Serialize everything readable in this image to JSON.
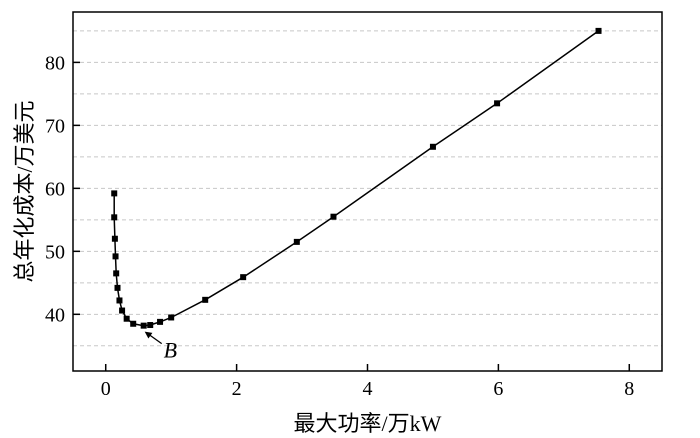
{
  "chart_data": {
    "type": "scatter",
    "title": "",
    "xlabel": "最大功率/万kW",
    "ylabel": "总年化成本/万美元",
    "xlim": [
      -0.5,
      8.5
    ],
    "ylim": [
      31,
      88
    ],
    "xticks": [
      0,
      2,
      4,
      6,
      8
    ],
    "yticks": [
      40,
      50,
      60,
      70,
      80
    ],
    "x_tick_labels": [
      "0",
      "2",
      "4",
      "6",
      "8"
    ],
    "y_tick_labels": [
      "40",
      "50",
      "60",
      "70",
      "80"
    ],
    "grid": "horizontal dashed",
    "legend": "none",
    "series": [
      {
        "color": "#000000",
        "marker": "square",
        "line": "solid",
        "points": [
          {
            "x": 0.13,
            "y": 59.2
          },
          {
            "x": 0.13,
            "y": 55.4
          },
          {
            "x": 0.14,
            "y": 52.0
          },
          {
            "x": 0.15,
            "y": 49.2
          },
          {
            "x": 0.16,
            "y": 46.5
          },
          {
            "x": 0.18,
            "y": 44.2
          },
          {
            "x": 0.21,
            "y": 42.2
          },
          {
            "x": 0.25,
            "y": 40.6
          },
          {
            "x": 0.32,
            "y": 39.3
          },
          {
            "x": 0.42,
            "y": 38.5
          },
          {
            "x": 0.58,
            "y": 38.2
          },
          {
            "x": 0.68,
            "y": 38.3
          },
          {
            "x": 0.83,
            "y": 38.8
          },
          {
            "x": 1.0,
            "y": 39.5
          },
          {
            "x": 1.52,
            "y": 42.3
          },
          {
            "x": 2.1,
            "y": 45.9
          },
          {
            "x": 2.92,
            "y": 51.5
          },
          {
            "x": 3.48,
            "y": 55.5
          },
          {
            "x": 5.0,
            "y": 66.6
          },
          {
            "x": 5.98,
            "y": 73.5
          },
          {
            "x": 7.53,
            "y": 85.0
          }
        ]
      }
    ],
    "annotations": [
      {
        "text": "B",
        "x": 0.58,
        "y": 38.2,
        "arrow": true
      }
    ]
  }
}
